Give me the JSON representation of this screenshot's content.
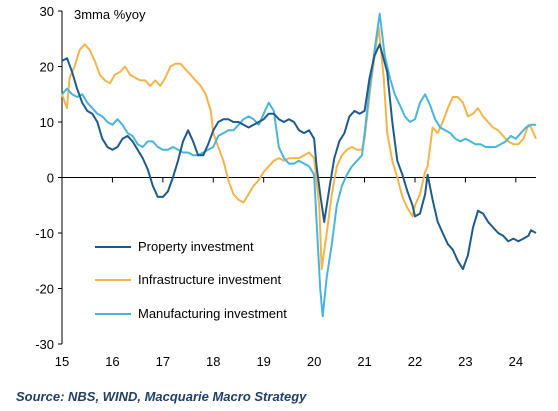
{
  "chart_data": {
    "type": "line",
    "unit_label": "3mma %yoy",
    "xlim": [
      2015,
      2024.4
    ],
    "ylim": [
      -30,
      30
    ],
    "x_ticks": [
      {
        "value": 2015,
        "label": "15"
      },
      {
        "value": 2016,
        "label": "16"
      },
      {
        "value": 2017,
        "label": "17"
      },
      {
        "value": 2018,
        "label": "18"
      },
      {
        "value": 2019,
        "label": "19"
      },
      {
        "value": 2020,
        "label": "20"
      },
      {
        "value": 2021,
        "label": "21"
      },
      {
        "value": 2022,
        "label": "22"
      },
      {
        "value": 2023,
        "label": "23"
      },
      {
        "value": 2024,
        "label": "24"
      }
    ],
    "y_ticks": [
      30,
      20,
      10,
      0,
      -10,
      -20,
      -30
    ],
    "grid": false,
    "legend_position": "lower-left",
    "series": [
      {
        "name": "Property investment",
        "color": "#1f5a8c",
        "points": [
          [
            2015.0,
            21.0
          ],
          [
            2015.1,
            21.5
          ],
          [
            2015.2,
            19.0
          ],
          [
            2015.3,
            16.0
          ],
          [
            2015.4,
            13.5
          ],
          [
            2015.5,
            12.0
          ],
          [
            2015.6,
            11.5
          ],
          [
            2015.7,
            10.0
          ],
          [
            2015.8,
            7.0
          ],
          [
            2015.9,
            5.5
          ],
          [
            2016.0,
            5.0
          ],
          [
            2016.1,
            5.5
          ],
          [
            2016.2,
            7.0
          ],
          [
            2016.3,
            7.5
          ],
          [
            2016.4,
            6.5
          ],
          [
            2016.5,
            5.0
          ],
          [
            2016.6,
            3.5
          ],
          [
            2016.7,
            1.5
          ],
          [
            2016.8,
            -1.5
          ],
          [
            2016.9,
            -3.5
          ],
          [
            2017.0,
            -3.5
          ],
          [
            2017.1,
            -2.5
          ],
          [
            2017.2,
            0.0
          ],
          [
            2017.3,
            3.0
          ],
          [
            2017.4,
            6.5
          ],
          [
            2017.5,
            8.5
          ],
          [
            2017.6,
            6.5
          ],
          [
            2017.7,
            4.0
          ],
          [
            2017.8,
            4.0
          ],
          [
            2017.9,
            6.0
          ],
          [
            2018.0,
            8.5
          ],
          [
            2018.1,
            10.0
          ],
          [
            2018.2,
            10.5
          ],
          [
            2018.3,
            10.5
          ],
          [
            2018.4,
            10.0
          ],
          [
            2018.5,
            10.0
          ],
          [
            2018.6,
            9.5
          ],
          [
            2018.7,
            9.0
          ],
          [
            2018.8,
            9.5
          ],
          [
            2018.9,
            10.0
          ],
          [
            2019.0,
            10.5
          ],
          [
            2019.1,
            11.5
          ],
          [
            2019.2,
            11.5
          ],
          [
            2019.3,
            10.5
          ],
          [
            2019.4,
            10.0
          ],
          [
            2019.5,
            10.5
          ],
          [
            2019.6,
            10.0
          ],
          [
            2019.7,
            8.5
          ],
          [
            2019.8,
            8.0
          ],
          [
            2019.9,
            8.5
          ],
          [
            2020.0,
            7.0
          ],
          [
            2020.05,
            2.0
          ],
          [
            2020.12,
            -3.0
          ],
          [
            2020.2,
            -8.0
          ],
          [
            2020.3,
            -2.0
          ],
          [
            2020.4,
            3.5
          ],
          [
            2020.5,
            6.5
          ],
          [
            2020.6,
            8.0
          ],
          [
            2020.7,
            11.0
          ],
          [
            2020.8,
            12.0
          ],
          [
            2020.9,
            11.5
          ],
          [
            2021.0,
            12.0
          ],
          [
            2021.1,
            18.0
          ],
          [
            2021.2,
            22.0
          ],
          [
            2021.3,
            24.0
          ],
          [
            2021.45,
            19.0
          ],
          [
            2021.55,
            10.0
          ],
          [
            2021.65,
            3.0
          ],
          [
            2021.75,
            0.5
          ],
          [
            2021.85,
            -2.5
          ],
          [
            2021.95,
            -5.0
          ],
          [
            2022.0,
            -7.0
          ],
          [
            2022.1,
            -6.5
          ],
          [
            2022.2,
            -3.0
          ],
          [
            2022.25,
            0.5
          ],
          [
            2022.35,
            -4.0
          ],
          [
            2022.45,
            -8.0
          ],
          [
            2022.55,
            -10.0
          ],
          [
            2022.65,
            -12.0
          ],
          [
            2022.75,
            -13.0
          ],
          [
            2022.85,
            -15.0
          ],
          [
            2022.95,
            -16.5
          ],
          [
            2023.05,
            -14.0
          ],
          [
            2023.15,
            -9.0
          ],
          [
            2023.25,
            -6.0
          ],
          [
            2023.35,
            -6.5
          ],
          [
            2023.45,
            -8.0
          ],
          [
            2023.55,
            -9.0
          ],
          [
            2023.65,
            -10.0
          ],
          [
            2023.75,
            -10.5
          ],
          [
            2023.85,
            -11.5
          ],
          [
            2023.95,
            -11.0
          ],
          [
            2024.05,
            -11.5
          ],
          [
            2024.15,
            -11.0
          ],
          [
            2024.25,
            -10.5
          ],
          [
            2024.3,
            -9.5
          ],
          [
            2024.4,
            -10.0
          ]
        ]
      },
      {
        "name": "Infrastructure investment",
        "color": "#f2b54c",
        "points": [
          [
            2015.0,
            15.0
          ],
          [
            2015.1,
            12.5
          ],
          [
            2015.15,
            18.0
          ],
          [
            2015.25,
            20.0
          ],
          [
            2015.35,
            23.0
          ],
          [
            2015.45,
            24.0
          ],
          [
            2015.55,
            23.0
          ],
          [
            2015.65,
            21.0
          ],
          [
            2015.75,
            18.5
          ],
          [
            2015.85,
            17.5
          ],
          [
            2015.95,
            17.0
          ],
          [
            2016.05,
            18.5
          ],
          [
            2016.15,
            19.0
          ],
          [
            2016.25,
            20.0
          ],
          [
            2016.35,
            18.5
          ],
          [
            2016.45,
            18.0
          ],
          [
            2016.55,
            17.5
          ],
          [
            2016.65,
            17.5
          ],
          [
            2016.75,
            16.5
          ],
          [
            2016.85,
            17.5
          ],
          [
            2016.95,
            16.5
          ],
          [
            2017.05,
            18.0
          ],
          [
            2017.15,
            20.0
          ],
          [
            2017.25,
            20.5
          ],
          [
            2017.35,
            20.5
          ],
          [
            2017.45,
            19.5
          ],
          [
            2017.55,
            18.5
          ],
          [
            2017.65,
            17.5
          ],
          [
            2017.75,
            16.5
          ],
          [
            2017.85,
            15.0
          ],
          [
            2017.95,
            12.0
          ],
          [
            2018.0,
            8.0
          ],
          [
            2018.1,
            5.5
          ],
          [
            2018.2,
            3.0
          ],
          [
            2018.3,
            -0.5
          ],
          [
            2018.4,
            -3.0
          ],
          [
            2018.5,
            -4.0
          ],
          [
            2018.6,
            -4.5
          ],
          [
            2018.7,
            -3.0
          ],
          [
            2018.8,
            -1.5
          ],
          [
            2018.9,
            -0.5
          ],
          [
            2019.0,
            1.0
          ],
          [
            2019.1,
            2.0
          ],
          [
            2019.2,
            3.0
          ],
          [
            2019.3,
            3.5
          ],
          [
            2019.4,
            3.0
          ],
          [
            2019.5,
            3.5
          ],
          [
            2019.6,
            3.5
          ],
          [
            2019.7,
            3.5
          ],
          [
            2019.8,
            4.0
          ],
          [
            2019.9,
            4.5
          ],
          [
            2020.0,
            3.5
          ],
          [
            2020.1,
            -5.0
          ],
          [
            2020.15,
            -16.5
          ],
          [
            2020.25,
            -10.0
          ],
          [
            2020.35,
            -3.0
          ],
          [
            2020.45,
            2.0
          ],
          [
            2020.55,
            4.0
          ],
          [
            2020.65,
            5.0
          ],
          [
            2020.75,
            5.5
          ],
          [
            2020.85,
            5.0
          ],
          [
            2020.95,
            5.0
          ],
          [
            2021.0,
            7.0
          ],
          [
            2021.1,
            15.0
          ],
          [
            2021.2,
            22.0
          ],
          [
            2021.28,
            27.0
          ],
          [
            2021.38,
            18.0
          ],
          [
            2021.45,
            8.0
          ],
          [
            2021.55,
            3.0
          ],
          [
            2021.65,
            0.0
          ],
          [
            2021.75,
            -3.5
          ],
          [
            2021.85,
            -5.5
          ],
          [
            2021.95,
            -7.0
          ],
          [
            2022.0,
            -5.0
          ],
          [
            2022.1,
            -3.0
          ],
          [
            2022.2,
            1.0
          ],
          [
            2022.25,
            2.0
          ],
          [
            2022.35,
            9.0
          ],
          [
            2022.45,
            8.0
          ],
          [
            2022.55,
            10.0
          ],
          [
            2022.65,
            12.5
          ],
          [
            2022.75,
            14.5
          ],
          [
            2022.85,
            14.5
          ],
          [
            2022.95,
            13.5
          ],
          [
            2023.05,
            11.0
          ],
          [
            2023.15,
            11.5
          ],
          [
            2023.25,
            12.5
          ],
          [
            2023.35,
            11.0
          ],
          [
            2023.45,
            10.0
          ],
          [
            2023.55,
            9.0
          ],
          [
            2023.65,
            8.5
          ],
          [
            2023.75,
            7.5
          ],
          [
            2023.85,
            6.5
          ],
          [
            2023.95,
            6.0
          ],
          [
            2024.05,
            6.0
          ],
          [
            2024.15,
            7.0
          ],
          [
            2024.25,
            9.5
          ],
          [
            2024.3,
            9.0
          ],
          [
            2024.4,
            7.0
          ]
        ]
      },
      {
        "name": "Manufacturing investment",
        "color": "#4bb4d8",
        "points": [
          [
            2015.0,
            15.0
          ],
          [
            2015.1,
            16.0
          ],
          [
            2015.2,
            15.0
          ],
          [
            2015.3,
            14.5
          ],
          [
            2015.4,
            15.0
          ],
          [
            2015.5,
            13.5
          ],
          [
            2015.6,
            12.5
          ],
          [
            2015.7,
            11.5
          ],
          [
            2015.8,
            11.0
          ],
          [
            2015.9,
            10.0
          ],
          [
            2016.0,
            9.5
          ],
          [
            2016.1,
            10.5
          ],
          [
            2016.2,
            9.5
          ],
          [
            2016.3,
            8.0
          ],
          [
            2016.4,
            7.5
          ],
          [
            2016.5,
            6.0
          ],
          [
            2016.6,
            5.5
          ],
          [
            2016.7,
            6.5
          ],
          [
            2016.8,
            6.5
          ],
          [
            2016.9,
            5.5
          ],
          [
            2017.0,
            5.0
          ],
          [
            2017.1,
            5.0
          ],
          [
            2017.2,
            5.5
          ],
          [
            2017.3,
            5.0
          ],
          [
            2017.4,
            4.5
          ],
          [
            2017.5,
            4.5
          ],
          [
            2017.6,
            4.0
          ],
          [
            2017.7,
            4.0
          ],
          [
            2017.8,
            4.5
          ],
          [
            2017.9,
            5.0
          ],
          [
            2018.0,
            5.5
          ],
          [
            2018.1,
            7.5
          ],
          [
            2018.2,
            8.0
          ],
          [
            2018.3,
            8.5
          ],
          [
            2018.4,
            8.5
          ],
          [
            2018.5,
            9.5
          ],
          [
            2018.6,
            10.5
          ],
          [
            2018.7,
            11.0
          ],
          [
            2018.8,
            10.5
          ],
          [
            2018.9,
            9.5
          ],
          [
            2019.0,
            11.5
          ],
          [
            2019.1,
            13.5
          ],
          [
            2019.2,
            12.0
          ],
          [
            2019.3,
            5.5
          ],
          [
            2019.4,
            3.5
          ],
          [
            2019.5,
            2.5
          ],
          [
            2019.6,
            2.5
          ],
          [
            2019.7,
            3.0
          ],
          [
            2019.8,
            2.5
          ],
          [
            2019.9,
            2.0
          ],
          [
            2020.0,
            0.5
          ],
          [
            2020.05,
            -8.0
          ],
          [
            2020.12,
            -20.0
          ],
          [
            2020.17,
            -25.0
          ],
          [
            2020.25,
            -18.0
          ],
          [
            2020.35,
            -12.0
          ],
          [
            2020.45,
            -5.0
          ],
          [
            2020.55,
            -1.5
          ],
          [
            2020.65,
            0.5
          ],
          [
            2020.75,
            2.0
          ],
          [
            2020.85,
            3.0
          ],
          [
            2020.95,
            4.0
          ],
          [
            2021.0,
            8.0
          ],
          [
            2021.1,
            16.0
          ],
          [
            2021.2,
            23.0
          ],
          [
            2021.3,
            29.5
          ],
          [
            2021.4,
            22.0
          ],
          [
            2021.5,
            18.0
          ],
          [
            2021.6,
            15.0
          ],
          [
            2021.7,
            13.0
          ],
          [
            2021.8,
            11.0
          ],
          [
            2021.9,
            10.0
          ],
          [
            2022.0,
            10.5
          ],
          [
            2022.1,
            13.5
          ],
          [
            2022.2,
            15.0
          ],
          [
            2022.3,
            13.0
          ],
          [
            2022.4,
            10.5
          ],
          [
            2022.5,
            9.0
          ],
          [
            2022.6,
            8.5
          ],
          [
            2022.7,
            8.0
          ],
          [
            2022.8,
            7.0
          ],
          [
            2022.9,
            6.5
          ],
          [
            2023.0,
            7.0
          ],
          [
            2023.1,
            6.5
          ],
          [
            2023.2,
            6.0
          ],
          [
            2023.3,
            6.0
          ],
          [
            2023.4,
            5.5
          ],
          [
            2023.5,
            5.5
          ],
          [
            2023.6,
            5.5
          ],
          [
            2023.7,
            6.0
          ],
          [
            2023.8,
            6.5
          ],
          [
            2023.9,
            7.5
          ],
          [
            2024.0,
            7.0
          ],
          [
            2024.1,
            8.0
          ],
          [
            2024.2,
            9.0
          ],
          [
            2024.3,
            9.5
          ],
          [
            2024.4,
            9.5
          ]
        ]
      }
    ]
  },
  "footer": {
    "source": "Source: NBS, WIND, Macquarie Macro Strategy"
  }
}
